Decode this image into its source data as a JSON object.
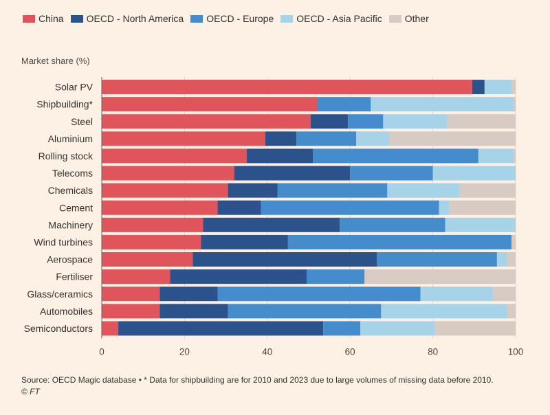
{
  "colors": {
    "China": "#e0545c",
    "OECD - North America": "#2c528c",
    "OECD - Europe": "#448ccb",
    "OECD - Asia Pacific": "#a7d3e8",
    "Other": "#d8cbc3",
    "background": "#fdf1e5"
  },
  "source_text": "Source: OECD Magic database • * Data for shipbuilding are for 2010 and 2023 due to large volumes of missing data before 2010.",
  "copyright": "© FT",
  "chart_data": {
    "type": "bar",
    "orientation": "horizontal",
    "stacked": true,
    "ylabel": "Market share (%)",
    "xlim": [
      0,
      100
    ],
    "xticks": [
      0,
      20,
      40,
      60,
      80,
      100
    ],
    "grid": true,
    "legend_position": "top-left",
    "categories": [
      "Solar PV",
      "Shipbuilding*",
      "Steel",
      "Aluminium",
      "Rolling stock",
      "Telecoms",
      "Chemicals",
      "Cement",
      "Machinery",
      "Wind turbines",
      "Aerospace",
      "Fertiliser",
      "Glass/ceramics",
      "Automobiles",
      "Semiconductors"
    ],
    "series": [
      {
        "name": "China",
        "values": [
          89.5,
          52,
          50.5,
          39.5,
          35,
          32,
          30.5,
          28,
          24.5,
          24,
          22,
          16.5,
          14,
          14,
          4
        ]
      },
      {
        "name": "OECD - North America",
        "values": [
          3,
          0,
          9,
          7.5,
          16,
          28,
          12,
          10.5,
          33,
          21,
          44.5,
          33,
          14,
          16.5,
          49.5
        ]
      },
      {
        "name": "OECD - Europe",
        "values": [
          0,
          13,
          8.5,
          14.5,
          40,
          20,
          26.5,
          43,
          25.5,
          54,
          29,
          14,
          49,
          37,
          9
        ]
      },
      {
        "name": "OECD - Asia Pacific",
        "values": [
          6.5,
          34.5,
          15.5,
          8,
          8.5,
          20,
          17.5,
          2.5,
          17,
          0,
          2.5,
          0,
          17.5,
          30.5,
          18
        ]
      },
      {
        "name": "Other",
        "values": [
          1,
          0.5,
          16.5,
          30.5,
          0.5,
          0,
          13.5,
          16,
          0,
          1,
          2,
          36.5,
          5.5,
          2,
          19.5
        ]
      }
    ]
  }
}
